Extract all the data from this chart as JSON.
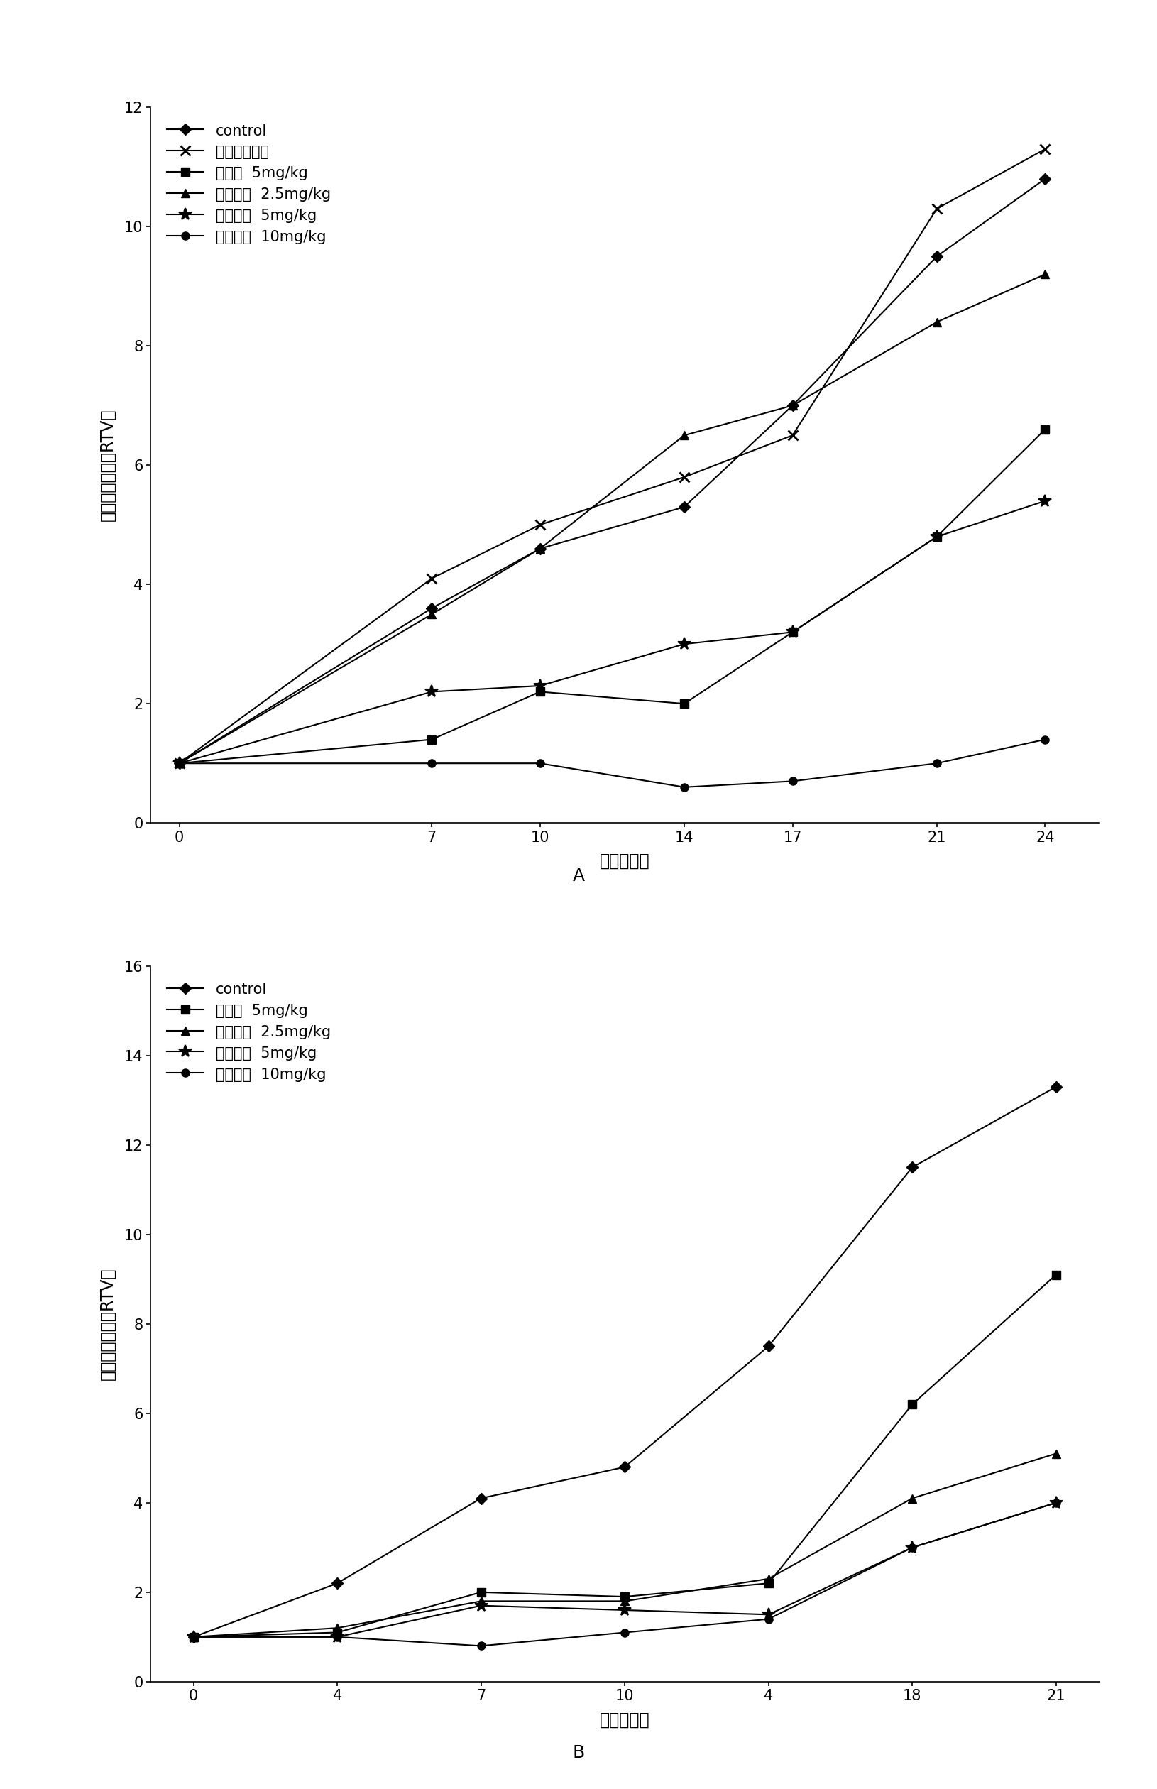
{
  "chart_A": {
    "xlabel": "时间（天）",
    "ylabel": "相对肿瘾体积（RTV）",
    "xlim": [
      -0.8,
      25.5
    ],
    "ylim": [
      0,
      12
    ],
    "yticks": [
      0,
      2,
      4,
      6,
      8,
      10,
      12
    ],
    "xticks": [
      0,
      7,
      10,
      14,
      17,
      21,
      24
    ],
    "series": [
      {
        "label": "control",
        "marker": "D",
        "x": [
          0,
          7,
          10,
          14,
          17,
          21,
          24
        ],
        "y": [
          1.0,
          3.6,
          4.6,
          5.3,
          7.0,
          9.5,
          10.8
        ]
      },
      {
        "label": "单纯激光照射",
        "marker": "x",
        "x": [
          0,
          7,
          10,
          14,
          17,
          21,
          24
        ],
        "y": [
          1.0,
          4.1,
          5.0,
          5.8,
          6.5,
          10.3,
          11.3
        ]
      },
      {
        "label": "血卤啊  5mg/kg",
        "marker": "s",
        "x": [
          0,
          7,
          10,
          14,
          17,
          21,
          24
        ],
        "y": [
          1.0,
          1.4,
          2.2,
          2.0,
          3.2,
          4.8,
          6.6
        ]
      },
      {
        "label": "多替泊芬  2.5mg/kg",
        "marker": "^",
        "x": [
          0,
          7,
          10,
          14,
          17,
          21,
          24
        ],
        "y": [
          1.0,
          3.5,
          4.6,
          6.5,
          7.0,
          8.4,
          9.2
        ]
      },
      {
        "label": "多替泊芬  5mg/kg",
        "marker": "*",
        "x": [
          0,
          7,
          10,
          14,
          17,
          21,
          24
        ],
        "y": [
          1.0,
          2.2,
          2.3,
          3.0,
          3.2,
          4.8,
          5.4
        ]
      },
      {
        "label": "多替泊芬  10mg/kg",
        "marker": "o",
        "x": [
          0,
          7,
          10,
          14,
          17,
          21,
          24
        ],
        "y": [
          1.0,
          1.0,
          1.0,
          0.6,
          0.7,
          1.0,
          1.4
        ]
      }
    ]
  },
  "chart_B": {
    "xlabel": "时间（天）",
    "ylabel": "相对肿瘾体积（RTV）",
    "ylim": [
      0,
      16
    ],
    "yticks": [
      0,
      2,
      4,
      6,
      8,
      10,
      12,
      14,
      16
    ],
    "xtick_labels": [
      "0",
      "4",
      "7",
      "10",
      "4",
      "18",
      "21"
    ],
    "xtick_positions": [
      0,
      1,
      2,
      3,
      4,
      5,
      6
    ],
    "series": [
      {
        "label": "control",
        "marker": "D",
        "x": [
          0,
          1,
          2,
          3,
          4,
          5,
          6
        ],
        "y": [
          1.0,
          2.2,
          4.1,
          4.8,
          7.5,
          11.5,
          13.3
        ]
      },
      {
        "label": "血卤啊  5mg/kg",
        "marker": "s",
        "x": [
          0,
          1,
          2,
          3,
          4,
          5,
          6
        ],
        "y": [
          1.0,
          1.1,
          2.0,
          1.9,
          2.2,
          6.2,
          9.1
        ]
      },
      {
        "label": "多替泊芬  2.5mg/kg",
        "marker": "^",
        "x": [
          0,
          1,
          2,
          3,
          4,
          5,
          6
        ],
        "y": [
          1.0,
          1.2,
          1.8,
          1.8,
          2.3,
          4.1,
          5.1
        ]
      },
      {
        "label": "多替泊芬  5mg/kg",
        "marker": "*",
        "x": [
          0,
          1,
          2,
          3,
          4,
          5,
          6
        ],
        "y": [
          1.0,
          1.0,
          1.7,
          1.6,
          1.5,
          3.0,
          4.0
        ]
      },
      {
        "label": "多替泊芬  10mg/kg",
        "marker": "o",
        "x": [
          0,
          1,
          2,
          3,
          4,
          5,
          6
        ],
        "y": [
          1.0,
          1.0,
          0.8,
          1.1,
          1.4,
          3.0,
          4.0
        ]
      }
    ]
  },
  "line_color": "#000000",
  "background_color": "#ffffff",
  "label_A": "A",
  "label_B": "B"
}
